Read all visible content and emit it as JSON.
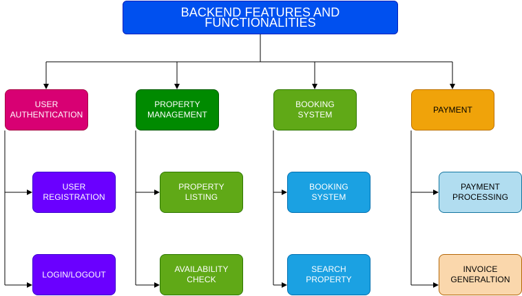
{
  "title": "BACKEND FEATURES AND FUNCTIONALITIES",
  "branches": [
    {
      "label": "USER\nAUTHENTICATION",
      "color": "#d80073",
      "border": "#a50040",
      "text_color": "#ffffff",
      "children": [
        {
          "label": "USER\nREGISTRATION",
          "color": "#6a00ff",
          "border": "#3700cc",
          "text_color": "#ffffff"
        },
        {
          "label": "LOGIN/LOGOUT",
          "color": "#6a00ff",
          "border": "#3700cc",
          "text_color": "#ffffff"
        }
      ]
    },
    {
      "label": "PROPERTY\nMANAGEMENT",
      "color": "#008a00",
      "border": "#005700",
      "text_color": "#ffffff",
      "children": [
        {
          "label": "PROPERTY\nLISTING",
          "color": "#60a917",
          "border": "#2d7600",
          "text_color": "#ffffff"
        },
        {
          "label": "AVAILABILITY\nCHECK",
          "color": "#60a917",
          "border": "#2d7600",
          "text_color": "#ffffff"
        }
      ]
    },
    {
      "label": "BOOKING\nSYSTEM",
      "color": "#60a917",
      "border": "#2d7600",
      "text_color": "#ffffff",
      "children": [
        {
          "label": "BOOKING\nSYSTEM",
          "color": "#1ba1e2",
          "border": "#006eaf",
          "text_color": "#ffffff"
        },
        {
          "label": "SEARCH\nPROPERTY",
          "color": "#1ba1e2",
          "border": "#006eaf",
          "text_color": "#ffffff"
        }
      ]
    },
    {
      "label": "PAYMENT",
      "color": "#f0a30a",
      "border": "#bd7000",
      "text_color": "#000000",
      "children": [
        {
          "label": "PAYMENT\nPROCESSING",
          "color": "#b1ddf0",
          "border": "#10739e",
          "text_color": "#000000"
        },
        {
          "label": "INVOICE\nGENERALTION",
          "color": "#fad7ac",
          "border": "#b46504",
          "text_color": "#000000"
        }
      ]
    }
  ]
}
